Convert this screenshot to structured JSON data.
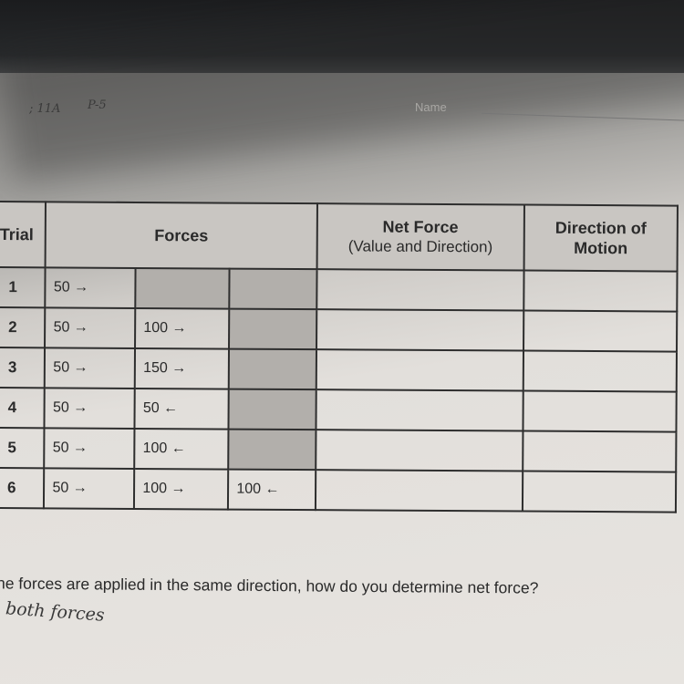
{
  "header": {
    "handwritten_class": "; 11A",
    "handwritten_period": "P-5",
    "name_label": "Name"
  },
  "table": {
    "headers": {
      "trial": "Trial",
      "forces": "Forces",
      "net_force": "Net Force",
      "net_force_sub": "(Value and Direction)",
      "direction_line1": "Direction of",
      "direction_line2": "Motion"
    },
    "rows": [
      {
        "trial": "1",
        "force1": "50 →",
        "force2": "",
        "force3": "",
        "net": "",
        "direction": ""
      },
      {
        "trial": "2",
        "force1": "50 →",
        "force2": "100 →",
        "force3": "",
        "net": "",
        "direction": ""
      },
      {
        "trial": "3",
        "force1": "50 →",
        "force2": "150 →",
        "force3": "",
        "net": "",
        "direction": ""
      },
      {
        "trial": "4",
        "force1": "50 →",
        "force2": "50 ←",
        "force3": "",
        "net": "",
        "direction": ""
      },
      {
        "trial": "5",
        "force1": "50 →",
        "force2": "100 ←",
        "force3": "",
        "net": "",
        "direction": ""
      },
      {
        "trial": "6",
        "force1": "50 →",
        "force2": "100 →",
        "force3": "100 ←",
        "net": "",
        "direction": ""
      }
    ],
    "shaded_color": "#b2afab"
  },
  "question": {
    "text": "he forces are applied in the same direction, how do you determine net force?",
    "handwritten_answer": "both forces"
  }
}
